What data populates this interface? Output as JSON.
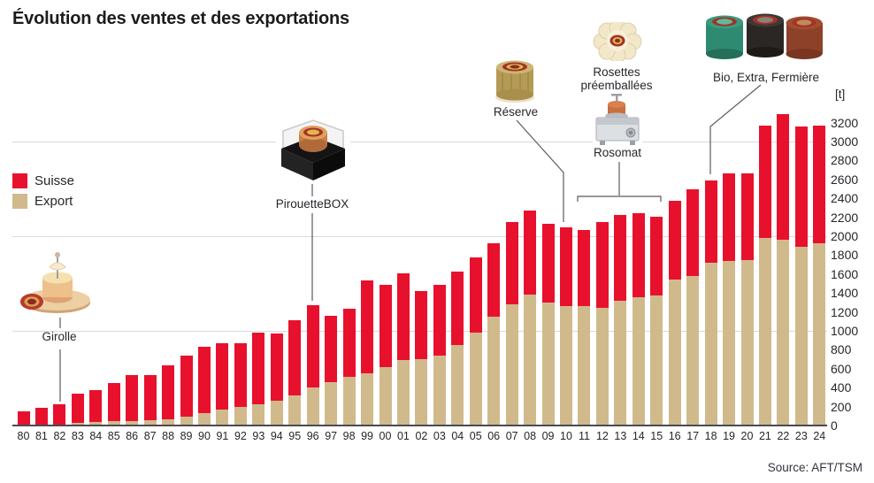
{
  "title": "Évolution des ventes et des exportations",
  "unit_label": "[t]",
  "source": "Source: AFT/TSM",
  "legend": [
    {
      "label": "Suisse",
      "color": "#e8112d"
    },
    {
      "label": "Export",
      "color": "#d0ba8c"
    }
  ],
  "annotations": [
    {
      "id": "girolle",
      "label": "Girolle"
    },
    {
      "id": "pirouettebox",
      "label": "PirouetteBOX"
    },
    {
      "id": "reserve",
      "label": "Réserve"
    },
    {
      "id": "rosettes",
      "label": "Rosettes préemballées"
    },
    {
      "id": "rosomat",
      "label": "Rosomat"
    },
    {
      "id": "bio",
      "label": "Bio, Extra, Fermière"
    }
  ],
  "chart_data": {
    "type": "bar",
    "stacked": true,
    "title": "Évolution des ventes et des exportations",
    "ylabel": "[t]",
    "ylim": [
      0,
      3200
    ],
    "ytick_step": 200,
    "grid_values": [
      1000,
      2000,
      3000
    ],
    "legend_position": "left",
    "categories": [
      "80",
      "81",
      "82",
      "83",
      "84",
      "85",
      "86",
      "87",
      "88",
      "89",
      "90",
      "91",
      "92",
      "93",
      "94",
      "95",
      "96",
      "97",
      "98",
      "99",
      "00",
      "01",
      "02",
      "03",
      "04",
      "05",
      "06",
      "07",
      "08",
      "09",
      "10",
      "11",
      "12",
      "13",
      "14",
      "15",
      "16",
      "17",
      "18",
      "19",
      "20",
      "21",
      "22",
      "23",
      "24"
    ],
    "series": [
      {
        "name": "Export",
        "color": "#d0ba8c",
        "values": [
          8,
          10,
          12,
          25,
          40,
          45,
          48,
          55,
          70,
          95,
          130,
          170,
          195,
          225,
          265,
          315,
          400,
          460,
          510,
          555,
          615,
          695,
          700,
          740,
          850,
          980,
          1145,
          1285,
          1385,
          1300,
          1260,
          1265,
          1245,
          1320,
          1355,
          1370,
          1545,
          1575,
          1715,
          1740,
          1750,
          1980,
          1965,
          1885,
          1925
        ]
      },
      {
        "name": "Suisse",
        "color": "#e8112d",
        "values": [
          137,
          175,
          213,
          315,
          330,
          405,
          482,
          480,
          570,
          645,
          705,
          695,
          670,
          755,
          705,
          800,
          870,
          695,
          725,
          980,
          875,
          910,
          720,
          750,
          780,
          795,
          780,
          860,
          885,
          835,
          835,
          800,
          900,
          900,
          890,
          835,
          825,
          925,
          875,
          925,
          910,
          1185,
          1325,
          1270,
          1245
        ]
      }
    ],
    "totals": [
      145,
      185,
      225,
      340,
      370,
      450,
      530,
      535,
      640,
      740,
      835,
      865,
      865,
      980,
      970,
      1115,
      1270,
      1155,
      1235,
      1535,
      1490,
      1605,
      1420,
      1490,
      1630,
      1775,
      1925,
      2145,
      2270,
      2135,
      2095,
      2065,
      2145,
      2220,
      2245,
      2205,
      2370,
      2500,
      2590,
      2665,
      2660,
      3165,
      3290,
      3155,
      3170
    ]
  }
}
